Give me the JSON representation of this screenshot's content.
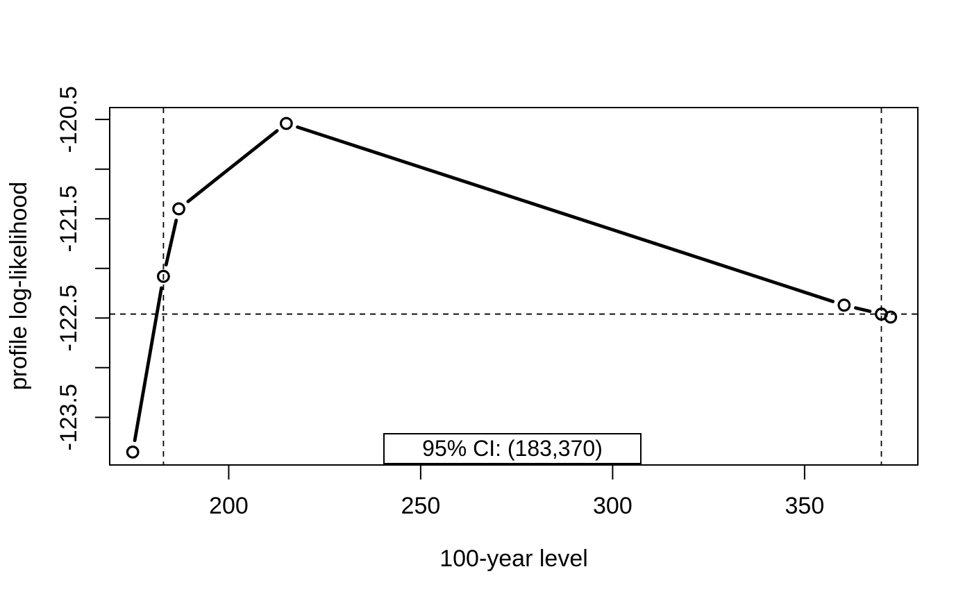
{
  "page": {
    "background_color": "#ffffff",
    "foreground_color": "#000000"
  },
  "chart_data": {
    "type": "line",
    "title": "",
    "xlabel": "100-year level",
    "ylabel": "profile log-likelihood",
    "xlim": [
      169,
      379.5
    ],
    "ylim": [
      -123.98,
      -120.38
    ],
    "x_ticks": [
      200,
      250,
      300,
      350
    ],
    "y_ticks": [
      -123.5,
      -123.0,
      -122.5,
      -122.0,
      -121.5,
      -121.0,
      -120.5
    ],
    "y_labeled_ticks": [
      -123.5,
      -122.5,
      -121.5,
      -120.5
    ],
    "grid": false,
    "series": [
      {
        "name": "profile log-likelihood",
        "marker": "open-circle",
        "line_style": "solid-segments-broken-at-points",
        "x": [
          175,
          183,
          187,
          215,
          360.3,
          370,
          372.4
        ],
        "y": [
          -123.85,
          -122.08,
          -121.4,
          -120.54,
          -122.37,
          -122.46,
          -122.49
        ]
      }
    ],
    "reference_lines": {
      "style": "dashed",
      "horizontal": [
        -122.46
      ],
      "vertical": [
        183,
        370
      ]
    },
    "annotation": {
      "label": "95% CI: (183,370)",
      "position": "bottom-center-inside"
    },
    "colors": {
      "line": "#000000",
      "marker": "#000000",
      "reference": "#000000",
      "background": "#ffffff"
    }
  }
}
